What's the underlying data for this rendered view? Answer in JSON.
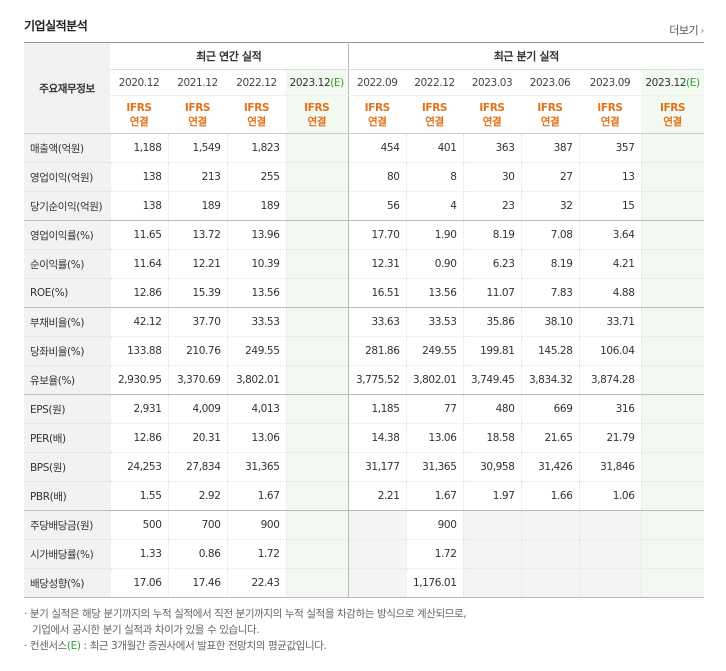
{
  "title": "기업실적분석",
  "more_label": "더보기",
  "row_header_label": "주요재무정보",
  "groups": {
    "annual": "최근 연간 실적",
    "quarterly": "최근 분기 실적"
  },
  "periods": [
    {
      "label": "2020.12",
      "est": false
    },
    {
      "label": "2021.12",
      "est": false
    },
    {
      "label": "2022.12",
      "est": false
    },
    {
      "label": "2023.12",
      "est": true
    },
    {
      "label": "2022.09",
      "est": false
    },
    {
      "label": "2022.12",
      "est": false
    },
    {
      "label": "2023.03",
      "est": false
    },
    {
      "label": "2023.06",
      "est": false
    },
    {
      "label": "2023.09",
      "est": false
    },
    {
      "label": "2023.12",
      "est": true
    }
  ],
  "est_mark": "(E)",
  "ifrs_line1": "IFRS",
  "ifrs_line2": "연결",
  "rows": [
    {
      "label": "매출액(억원)",
      "values": [
        "1,188",
        "1,549",
        "1,823",
        "",
        "454",
        "401",
        "363",
        "387",
        "357",
        ""
      ]
    },
    {
      "label": "영업이익(억원)",
      "values": [
        "138",
        "213",
        "255",
        "",
        "80",
        "8",
        "30",
        "27",
        "13",
        ""
      ]
    },
    {
      "label": "당기순이익(억원)",
      "values": [
        "138",
        "189",
        "189",
        "",
        "56",
        "4",
        "23",
        "32",
        "15",
        ""
      ],
      "group_end": true
    },
    {
      "label": "영업이익률(%)",
      "values": [
        "11.65",
        "13.72",
        "13.96",
        "",
        "17.70",
        "1.90",
        "8.19",
        "7.08",
        "3.64",
        ""
      ]
    },
    {
      "label": "순이익률(%)",
      "values": [
        "11.64",
        "12.21",
        "10.39",
        "",
        "12.31",
        "0.90",
        "6.23",
        "8.19",
        "4.21",
        ""
      ]
    },
    {
      "label": "ROE(%)",
      "values": [
        "12.86",
        "15.39",
        "13.56",
        "",
        "16.51",
        "13.56",
        "11.07",
        "7.83",
        "4.88",
        ""
      ],
      "group_end": true
    },
    {
      "label": "부채비율(%)",
      "values": [
        "42.12",
        "37.70",
        "33.53",
        "",
        "33.63",
        "33.53",
        "35.86",
        "38.10",
        "33.71",
        ""
      ]
    },
    {
      "label": "당좌비율(%)",
      "values": [
        "133.88",
        "210.76",
        "249.55",
        "",
        "281.86",
        "249.55",
        "199.81",
        "145.28",
        "106.04",
        ""
      ]
    },
    {
      "label": "유보율(%)",
      "values": [
        "2,930.95",
        "3,370.69",
        "3,802.01",
        "",
        "3,775.52",
        "3,802.01",
        "3,749.45",
        "3,834.32",
        "3,874.28",
        ""
      ],
      "group_end": true
    },
    {
      "label": "EPS(원)",
      "values": [
        "2,931",
        "4,009",
        "4,013",
        "",
        "1,185",
        "77",
        "480",
        "669",
        "316",
        ""
      ]
    },
    {
      "label": "PER(배)",
      "values": [
        "12.86",
        "20.31",
        "13.06",
        "",
        "14.38",
        "13.06",
        "18.58",
        "21.65",
        "21.79",
        ""
      ]
    },
    {
      "label": "BPS(원)",
      "values": [
        "24,253",
        "27,834",
        "31,365",
        "",
        "31,177",
        "31,365",
        "30,958",
        "31,426",
        "31,846",
        ""
      ]
    },
    {
      "label": "PBR(배)",
      "values": [
        "1.55",
        "2.92",
        "1.67",
        "",
        "2.21",
        "1.67",
        "1.97",
        "1.66",
        "1.06",
        ""
      ],
      "group_end": true
    },
    {
      "label": "주당배당금(원)",
      "values": [
        "500",
        "700",
        "900",
        "",
        "",
        "900",
        "",
        "",
        "",
        ""
      ],
      "empty_quarters": true
    },
    {
      "label": "시가배당률(%)",
      "values": [
        "1.33",
        "0.86",
        "1.72",
        "",
        "",
        "1.72",
        "",
        "",
        "",
        ""
      ],
      "empty_quarters": true
    },
    {
      "label": "배당성향(%)",
      "values": [
        "17.06",
        "17.46",
        "22.43",
        "",
        "",
        "1,176.01",
        "",
        "",
        "",
        ""
      ],
      "empty_quarters": true
    }
  ],
  "notes": [
    "· 분기 실적은 해당 분기까지의 누적 실적에서 직전 분기까지의 누적 실적을 차감하는 방식으로 계산되므로,",
    "  기업에서 공시한 분기 실적과 차이가 있을 수 있습니다."
  ],
  "note_consensus_prefix": "· 컨센서스",
  "note_consensus_mark": "(E)",
  "note_consensus_suffix": " : 최근 3개월간 증권사에서 발표한 전망치의 평균값입니다."
}
